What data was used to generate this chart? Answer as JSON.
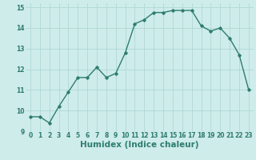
{
  "x": [
    0,
    1,
    2,
    3,
    4,
    5,
    6,
    7,
    8,
    9,
    10,
    11,
    12,
    13,
    14,
    15,
    16,
    17,
    18,
    19,
    20,
    21,
    22,
    23
  ],
  "y": [
    9.7,
    9.7,
    9.4,
    10.2,
    10.9,
    11.6,
    11.6,
    12.1,
    11.6,
    11.8,
    12.8,
    14.2,
    14.4,
    14.75,
    14.75,
    14.85,
    14.85,
    14.85,
    14.1,
    13.85,
    14.0,
    13.5,
    12.7,
    11.0
  ],
  "line_color": "#2e7d6e",
  "marker": "D",
  "marker_size": 1.8,
  "bg_color": "#ceecea",
  "grid_color": "#b0d8d4",
  "xlabel": "Humidex (Indice chaleur)",
  "xlim": [
    -0.5,
    23.5
  ],
  "ylim": [
    9,
    15.2
  ],
  "yticks": [
    9,
    10,
    11,
    12,
    13,
    14,
    15
  ],
  "xticks": [
    0,
    1,
    2,
    3,
    4,
    5,
    6,
    7,
    8,
    9,
    10,
    11,
    12,
    13,
    14,
    15,
    16,
    17,
    18,
    19,
    20,
    21,
    22,
    23
  ],
  "tick_fontsize": 5.5,
  "label_fontsize": 7.5,
  "line_width": 1.0
}
